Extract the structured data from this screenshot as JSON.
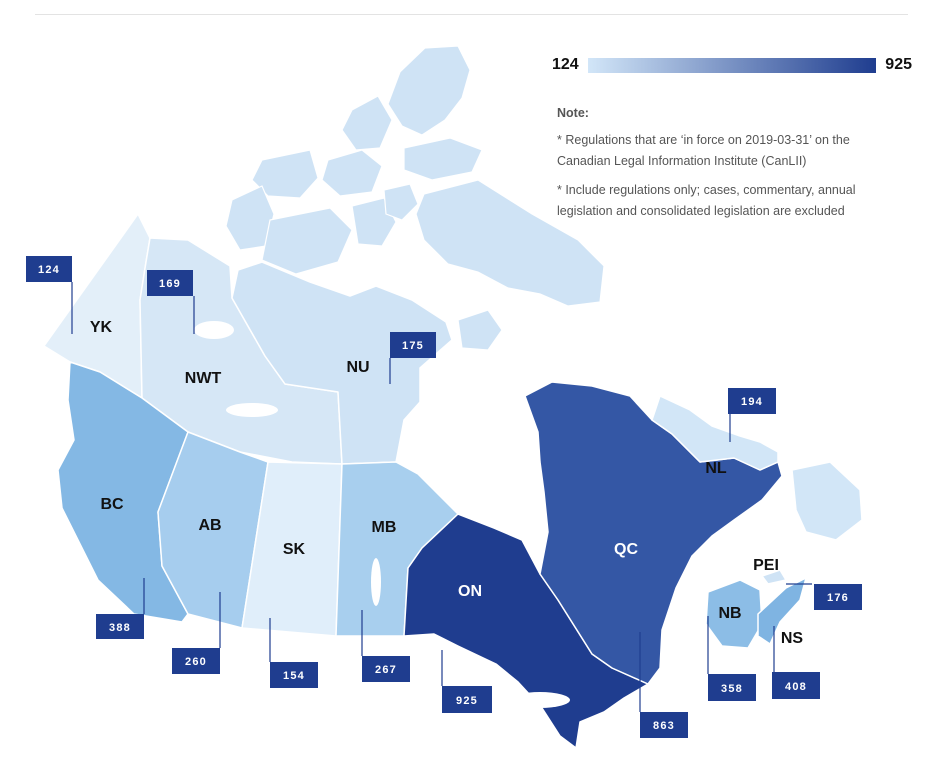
{
  "legend": {
    "min_label": "124",
    "max_label": "925",
    "color_low": "#d2e6f8",
    "color_high": "#1f3d8f"
  },
  "note": {
    "title": "Note:",
    "lines": [
      "* Regulations that are ‘in force on 2019-03-31’ on the Canadian Legal Information Institute (CanLII)",
      "* Include regulations only; cases, commentary, annual legislation and consolidated legislation are excluded"
    ]
  },
  "provinces": {
    "YK": {
      "label": "YK",
      "value": "124",
      "color": "#e3eff9"
    },
    "NWT": {
      "label": "NWT",
      "value": "169",
      "color": "#d6e7f6"
    },
    "NU": {
      "label": "NU",
      "value": "175",
      "color": "#cfe3f5"
    },
    "BC": {
      "label": "BC",
      "value": "388",
      "color": "#84b8e4"
    },
    "AB": {
      "label": "AB",
      "value": "260",
      "color": "#a6cdee"
    },
    "SK": {
      "label": "SK",
      "value": "154",
      "color": "#e0eefa"
    },
    "MB": {
      "label": "MB",
      "value": "267",
      "color": "#a8cfee"
    },
    "ON": {
      "label": "ON",
      "value": "925",
      "color": "#1f3d8f"
    },
    "QC": {
      "label": "QC",
      "value": "863",
      "color": "#3457a5"
    },
    "NL": {
      "label": "NL",
      "value": "194",
      "color": "#d2e6f7"
    },
    "NB": {
      "label": "NB",
      "value": "358",
      "color": "#8cbde6"
    },
    "NS": {
      "label": "NS",
      "value": "408",
      "color": "#7fb4e2"
    },
    "PEI": {
      "label": "PEI",
      "value": "176",
      "color": "#cfe3f5"
    }
  },
  "callout_color": "#1f3d8f"
}
